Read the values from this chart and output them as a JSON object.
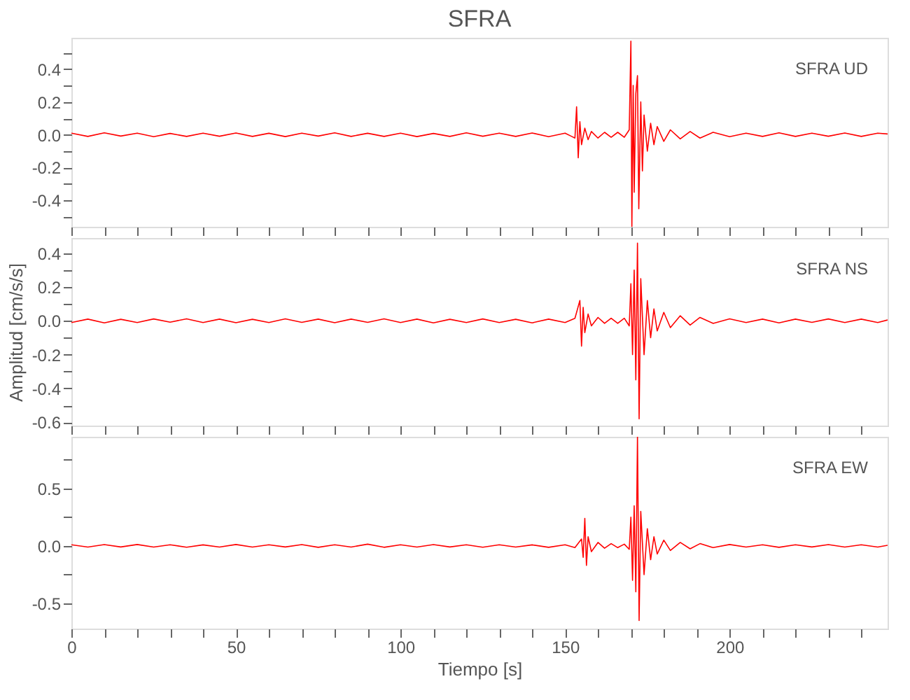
{
  "chart_data": [
    {
      "type": "line",
      "title": "SFRA",
      "annotations": [
        "SFRA   UD"
      ],
      "grid": false,
      "tick_labels": "y",
      "line_style": "solid",
      "marker": "none",
      "xlim": [
        0,
        248
      ],
      "xticks": [
        0,
        {
          "value": 10,
          "label": null
        },
        {
          "value": 20,
          "label": null
        },
        {
          "value": 30,
          "label": null
        },
        {
          "value": 40,
          "label": null
        },
        50,
        {
          "value": 60,
          "label": null
        },
        {
          "value": 70,
          "label": null
        },
        {
          "value": 80,
          "label": null
        },
        {
          "value": 90,
          "label": null
        },
        100,
        {
          "value": 110,
          "label": null
        },
        {
          "value": 120,
          "label": null
        },
        {
          "value": 130,
          "label": null
        },
        {
          "value": 140,
          "label": null
        },
        150,
        {
          "value": 160,
          "label": null
        },
        {
          "value": 170,
          "label": null
        },
        {
          "value": 180,
          "label": null
        },
        {
          "value": 190,
          "label": null
        },
        200,
        {
          "value": 210,
          "label": null
        },
        {
          "value": 220,
          "label": null
        },
        {
          "value": 230,
          "label": null
        },
        {
          "value": 240,
          "label": null
        }
      ],
      "ylim": [
        -0.56,
        0.59
      ],
      "yticks": [
        {
          "value": -0.5,
          "label": null
        },
        -0.4,
        {
          "value": -0.3,
          "label": null
        },
        -0.2,
        {
          "value": -0.1,
          "label": null
        },
        {
          "value": 0,
          "label": "0.0"
        },
        {
          "value": 0.1,
          "label": null
        },
        0.2,
        {
          "value": 0.3,
          "label": null
        },
        0.4,
        {
          "value": 0.5,
          "label": null
        }
      ],
      "x": [
        0,
        5,
        10,
        15,
        20,
        25,
        30,
        35,
        40,
        45,
        50,
        55,
        60,
        65,
        70,
        75,
        80,
        85,
        90,
        95,
        100,
        105,
        110,
        115,
        120,
        125,
        130,
        135,
        140,
        145,
        150,
        152,
        153,
        153.5,
        154,
        154.5,
        155,
        156,
        157,
        158,
        160,
        162,
        164,
        166,
        168,
        169.5,
        170,
        170.3,
        170.7,
        171,
        171.5,
        172,
        172.4,
        173,
        173.5,
        174,
        175,
        176,
        177,
        178,
        180,
        182,
        185,
        188,
        191,
        195,
        200,
        205,
        210,
        215,
        220,
        225,
        230,
        235,
        240,
        245,
        248
      ],
      "series": [
        {
          "color": "#ff0000",
          "values": [
            0.01,
            -0.01,
            0.012,
            -0.008,
            0.01,
            -0.012,
            0.008,
            -0.01,
            0.01,
            -0.009,
            0.011,
            -0.01,
            0.009,
            -0.011,
            0.01,
            -0.008,
            0.012,
            -0.01,
            0.009,
            -0.01,
            0.01,
            -0.011,
            0.008,
            -0.01,
            0.012,
            -0.009,
            0.01,
            -0.01,
            0.011,
            -0.012,
            0.01,
            -0.01,
            -0.02,
            0.17,
            -0.14,
            0.08,
            -0.06,
            0.04,
            -0.03,
            0.02,
            -0.02,
            0.015,
            -0.015,
            0.015,
            -0.015,
            0.03,
            0.57,
            -0.56,
            0.3,
            -0.35,
            0.25,
            0.36,
            -0.45,
            0.2,
            -0.22,
            0.12,
            -0.1,
            0.07,
            -0.06,
            0.05,
            -0.04,
            0.03,
            -0.025,
            0.02,
            -0.02,
            0.015,
            -0.012,
            0.01,
            -0.01,
            0.012,
            -0.01,
            0.01,
            -0.009,
            0.011,
            -0.01,
            0.01,
            0.005
          ]
        }
      ]
    },
    {
      "type": "line",
      "ylabel": "Amplitud [cm/s/s]",
      "annotations": [
        "SFRA   NS"
      ],
      "grid": false,
      "tick_labels": "y",
      "line_style": "solid",
      "marker": "none",
      "xlim": [
        0,
        248
      ],
      "xticks": [
        0,
        {
          "value": 10,
          "label": null
        },
        {
          "value": 20,
          "label": null
        },
        {
          "value": 30,
          "label": null
        },
        {
          "value": 40,
          "label": null
        },
        50,
        {
          "value": 60,
          "label": null
        },
        {
          "value": 70,
          "label": null
        },
        {
          "value": 80,
          "label": null
        },
        {
          "value": 90,
          "label": null
        },
        100,
        {
          "value": 110,
          "label": null
        },
        {
          "value": 120,
          "label": null
        },
        {
          "value": 130,
          "label": null
        },
        {
          "value": 140,
          "label": null
        },
        150,
        {
          "value": 160,
          "label": null
        },
        {
          "value": 170,
          "label": null
        },
        {
          "value": 180,
          "label": null
        },
        {
          "value": 190,
          "label": null
        },
        200,
        {
          "value": 210,
          "label": null
        },
        {
          "value": 220,
          "label": null
        },
        {
          "value": 230,
          "label": null
        },
        {
          "value": 240,
          "label": null
        }
      ],
      "ylim": [
        -0.62,
        0.49
      ],
      "yticks": [
        -0.6,
        {
          "value": -0.5,
          "label": null
        },
        -0.4,
        {
          "value": -0.3,
          "label": null
        },
        -0.2,
        {
          "value": -0.1,
          "label": null
        },
        {
          "value": 0,
          "label": "0.0"
        },
        {
          "value": 0.1,
          "label": null
        },
        0.2,
        {
          "value": 0.3,
          "label": null
        },
        0.4
      ],
      "x": [
        0,
        5,
        10,
        15,
        20,
        25,
        30,
        35,
        40,
        45,
        50,
        55,
        60,
        65,
        70,
        75,
        80,
        85,
        90,
        95,
        100,
        105,
        110,
        115,
        120,
        125,
        130,
        135,
        140,
        145,
        150,
        153,
        154.5,
        155,
        155.5,
        156,
        157,
        158,
        160,
        162,
        164,
        166,
        168,
        169.5,
        170,
        170.5,
        171,
        171.5,
        172,
        172.5,
        173,
        174,
        175,
        176,
        177,
        178,
        180,
        182,
        185,
        188,
        191,
        195,
        200,
        205,
        210,
        215,
        220,
        225,
        230,
        235,
        240,
        245,
        248
      ],
      "series": [
        {
          "color": "#ff0000",
          "values": [
            -0.01,
            0.01,
            -0.012,
            0.009,
            -0.01,
            0.011,
            -0.008,
            0.012,
            -0.01,
            0.01,
            -0.011,
            0.009,
            -0.01,
            0.012,
            -0.009,
            0.01,
            -0.011,
            0.01,
            -0.009,
            0.012,
            -0.01,
            0.01,
            -0.012,
            0.009,
            -0.01,
            0.011,
            -0.01,
            0.009,
            -0.012,
            0.01,
            -0.01,
            0.015,
            0.12,
            -0.15,
            0.08,
            -0.07,
            0.04,
            -0.03,
            0.02,
            -0.015,
            0.015,
            -0.015,
            0.015,
            -0.03,
            0.22,
            -0.2,
            0.3,
            -0.35,
            0.46,
            -0.58,
            0.25,
            -0.2,
            0.12,
            -0.1,
            0.07,
            -0.06,
            0.05,
            -0.04,
            0.03,
            -0.025,
            0.02,
            -0.015,
            0.012,
            -0.01,
            0.01,
            -0.012,
            0.01,
            -0.009,
            0.011,
            -0.01,
            0.01,
            -0.01,
            0.005
          ]
        }
      ]
    },
    {
      "type": "line",
      "xlabel": "Tiempo [s]",
      "annotations": [
        "SFRA   EW"
      ],
      "grid": false,
      "line_style": "solid",
      "marker": "none",
      "xlim": [
        0,
        248
      ],
      "xticks": [
        0,
        {
          "value": 10,
          "label": null
        },
        {
          "value": 20,
          "label": null
        },
        {
          "value": 30,
          "label": null
        },
        {
          "value": 40,
          "label": null
        },
        50,
        {
          "value": 60,
          "label": null
        },
        {
          "value": 70,
          "label": null
        },
        {
          "value": 80,
          "label": null
        },
        {
          "value": 90,
          "label": null
        },
        100,
        {
          "value": 110,
          "label": null
        },
        {
          "value": 120,
          "label": null
        },
        {
          "value": 130,
          "label": null
        },
        {
          "value": 140,
          "label": null
        },
        150,
        {
          "value": 160,
          "label": null
        },
        {
          "value": 170,
          "label": null
        },
        {
          "value": 180,
          "label": null
        },
        {
          "value": 190,
          "label": null
        },
        200,
        {
          "value": 210,
          "label": null
        },
        {
          "value": 220,
          "label": null
        },
        {
          "value": 230,
          "label": null
        },
        {
          "value": 240,
          "label": null
        }
      ],
      "ylim": [
        -0.72,
        0.95
      ],
      "yticks": [
        -0.5,
        {
          "value": -0.25,
          "label": null
        },
        {
          "value": 0,
          "label": "0.0"
        },
        {
          "value": 0.25,
          "label": null
        },
        0.5,
        {
          "value": 0.75,
          "label": null
        }
      ],
      "x": [
        0,
        5,
        10,
        15,
        20,
        25,
        30,
        35,
        40,
        45,
        50,
        55,
        60,
        65,
        70,
        75,
        80,
        85,
        90,
        95,
        100,
        105,
        110,
        115,
        120,
        125,
        130,
        135,
        140,
        145,
        150,
        153,
        155,
        155.5,
        156,
        156.5,
        157,
        158,
        160,
        162,
        164,
        166,
        168,
        169.5,
        170,
        170.5,
        171,
        171.5,
        172,
        172.5,
        173,
        174,
        175,
        176,
        177,
        178,
        180,
        182,
        185,
        188,
        191,
        195,
        200,
        205,
        210,
        215,
        220,
        225,
        230,
        235,
        240,
        245,
        248
      ],
      "series": [
        {
          "color": "#ff0000",
          "values": [
            0.01,
            -0.01,
            0.011,
            -0.009,
            0.012,
            -0.01,
            0.01,
            -0.011,
            0.009,
            -0.01,
            0.012,
            -0.01,
            0.01,
            -0.009,
            0.011,
            -0.012,
            0.01,
            -0.01,
            0.015,
            -0.012,
            0.01,
            -0.01,
            0.011,
            -0.009,
            0.01,
            -0.011,
            0.01,
            -0.01,
            0.009,
            -0.012,
            0.01,
            -0.015,
            0.06,
            -0.1,
            0.24,
            -0.17,
            0.08,
            -0.05,
            0.03,
            -0.02,
            0.02,
            -0.015,
            0.015,
            -0.03,
            0.25,
            -0.3,
            0.35,
            -0.4,
            0.95,
            -0.65,
            0.3,
            -0.25,
            0.15,
            -0.12,
            0.08,
            -0.07,
            0.05,
            -0.04,
            0.03,
            -0.025,
            0.02,
            -0.015,
            0.012,
            -0.01,
            0.01,
            -0.012,
            0.01,
            -0.009,
            0.011,
            -0.01,
            0.01,
            -0.01,
            0.005
          ]
        }
      ]
    }
  ]
}
